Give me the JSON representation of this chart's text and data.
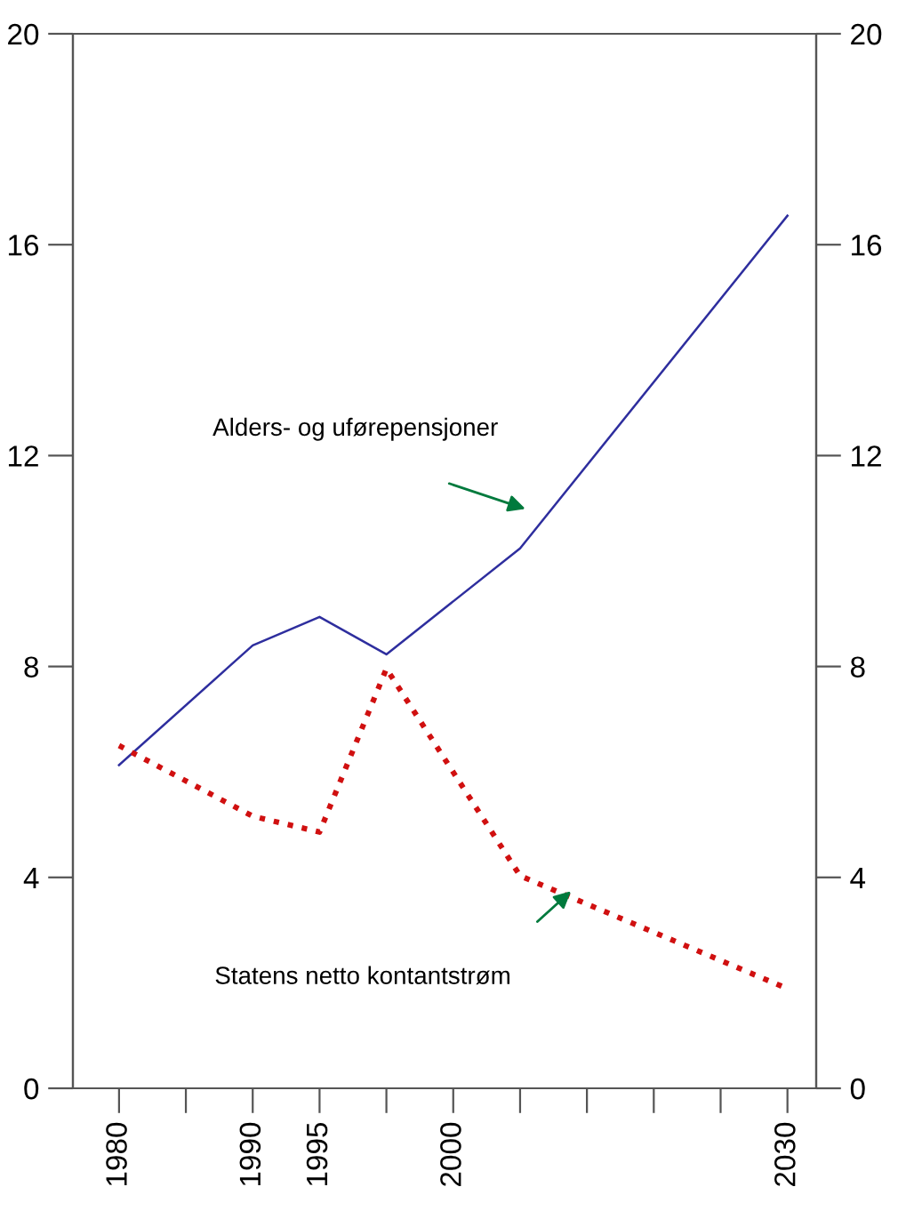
{
  "chart_data": {
    "type": "line",
    "categories": [
      "1980",
      null,
      "1990",
      "1995",
      null,
      "2000",
      null,
      null,
      null,
      null,
      "2030"
    ],
    "series": [
      {
        "color": "#2e2e9e",
        "line_style": "solid",
        "values": [
          6.13,
          null,
          8.4,
          8.94,
          8.23,
          null,
          10.24,
          null,
          null,
          null,
          16.55
        ]
      },
      {
        "color": "#d01010",
        "line_style": "dotted",
        "values": [
          6.5,
          null,
          5.16,
          4.86,
          7.96,
          null,
          4.03,
          null,
          null,
          null,
          1.89
        ]
      }
    ],
    "ylim": [
      0,
      20
    ],
    "yticks": [
      0,
      4,
      8,
      12,
      16,
      20
    ],
    "y2lim": [
      0,
      20
    ],
    "y2ticks": [
      0,
      4,
      8,
      12,
      16,
      20
    ],
    "annotations": [
      "Alders- og uførepensjoner",
      "Statens netto kontantstrøm"
    ],
    "grid": false,
    "marker": "none"
  }
}
